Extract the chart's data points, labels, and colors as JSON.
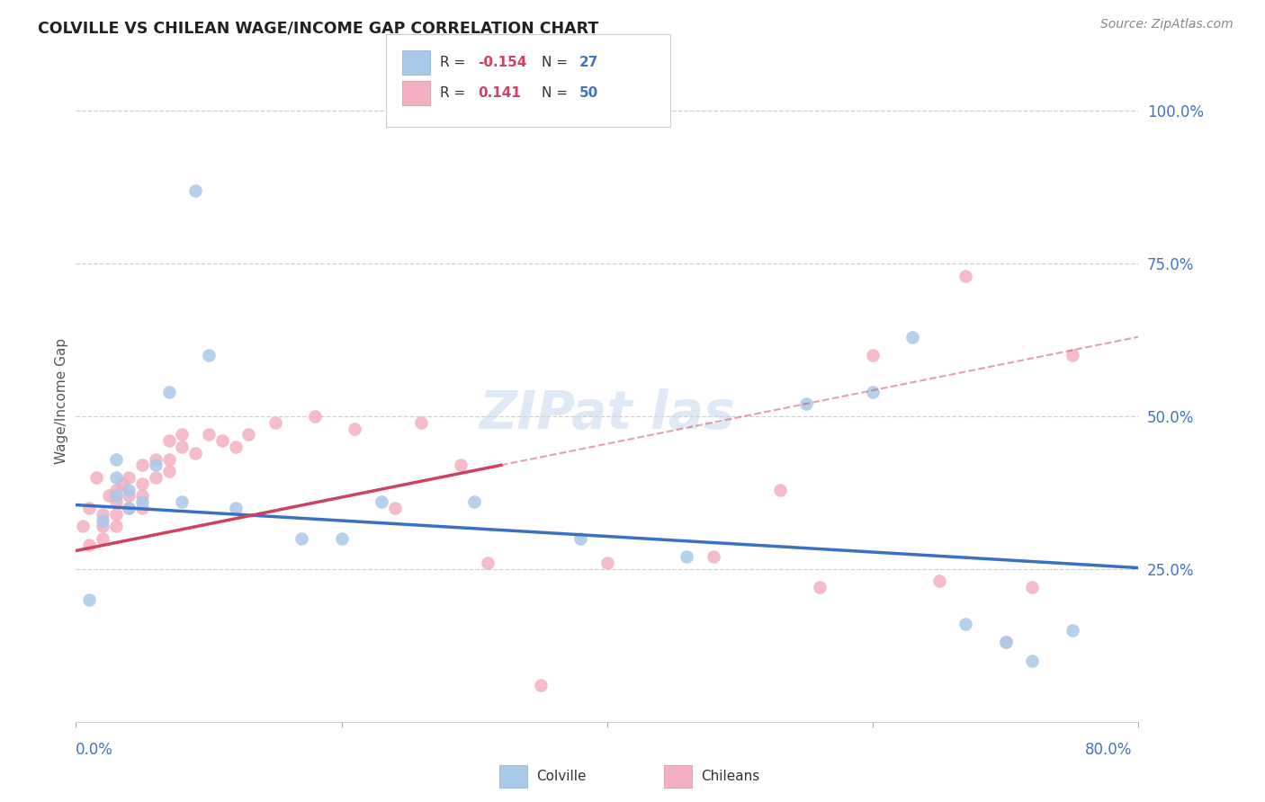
{
  "title": "COLVILLE VS CHILEAN WAGE/INCOME GAP CORRELATION CHART",
  "source": "Source: ZipAtlas.com",
  "ylabel": "Wage/Income Gap",
  "xmin": 0.0,
  "xmax": 0.8,
  "ymin": 0.0,
  "ymax": 1.05,
  "right_ytick_vals": [
    1.0,
    0.75,
    0.5,
    0.25
  ],
  "right_yticklabels": [
    "100.0%",
    "75.0%",
    "50.0%",
    "25.0%"
  ],
  "colville_color": "#a8c8e8",
  "chilean_color": "#f4afc0",
  "colville_R": -0.154,
  "colville_N": 27,
  "chilean_R": 0.141,
  "chilean_N": 50,
  "colville_x": [
    0.01,
    0.02,
    0.03,
    0.03,
    0.03,
    0.04,
    0.04,
    0.05,
    0.06,
    0.07,
    0.08,
    0.09,
    0.1,
    0.12,
    0.17,
    0.2,
    0.23,
    0.3,
    0.38,
    0.46,
    0.55,
    0.6,
    0.63,
    0.67,
    0.7,
    0.72,
    0.75
  ],
  "colville_y": [
    0.2,
    0.33,
    0.37,
    0.4,
    0.43,
    0.35,
    0.38,
    0.36,
    0.42,
    0.54,
    0.36,
    0.87,
    0.6,
    0.35,
    0.3,
    0.3,
    0.36,
    0.36,
    0.3,
    0.27,
    0.52,
    0.54,
    0.63,
    0.16,
    0.13,
    0.1,
    0.15
  ],
  "chilean_x": [
    0.005,
    0.01,
    0.01,
    0.015,
    0.02,
    0.02,
    0.02,
    0.025,
    0.03,
    0.03,
    0.03,
    0.03,
    0.035,
    0.04,
    0.04,
    0.04,
    0.05,
    0.05,
    0.05,
    0.05,
    0.06,
    0.06,
    0.07,
    0.07,
    0.07,
    0.08,
    0.08,
    0.09,
    0.1,
    0.11,
    0.12,
    0.13,
    0.15,
    0.18,
    0.21,
    0.24,
    0.26,
    0.29,
    0.31,
    0.35,
    0.4,
    0.48,
    0.53,
    0.56,
    0.6,
    0.65,
    0.67,
    0.7,
    0.72,
    0.75
  ],
  "chilean_y": [
    0.32,
    0.35,
    0.29,
    0.4,
    0.34,
    0.32,
    0.3,
    0.37,
    0.38,
    0.36,
    0.34,
    0.32,
    0.39,
    0.4,
    0.37,
    0.35,
    0.42,
    0.39,
    0.37,
    0.35,
    0.43,
    0.4,
    0.46,
    0.43,
    0.41,
    0.47,
    0.45,
    0.44,
    0.47,
    0.46,
    0.45,
    0.47,
    0.49,
    0.5,
    0.48,
    0.35,
    0.49,
    0.42,
    0.26,
    0.06,
    0.26,
    0.27,
    0.38,
    0.22,
    0.6,
    0.23,
    0.73,
    0.13,
    0.22,
    0.6
  ],
  "background_color": "#ffffff",
  "grid_color": "#d0d0d0",
  "trend_blue_color": "#3a70c0",
  "trend_pink_color": "#d04060",
  "trend_blue_y0": 0.355,
  "trend_blue_y1": 0.252,
  "trend_pink_y0": 0.28,
  "trend_pink_y1": 0.42,
  "trend_pink_solid_xmax": 0.32,
  "watermark_text": "ZIPat las"
}
